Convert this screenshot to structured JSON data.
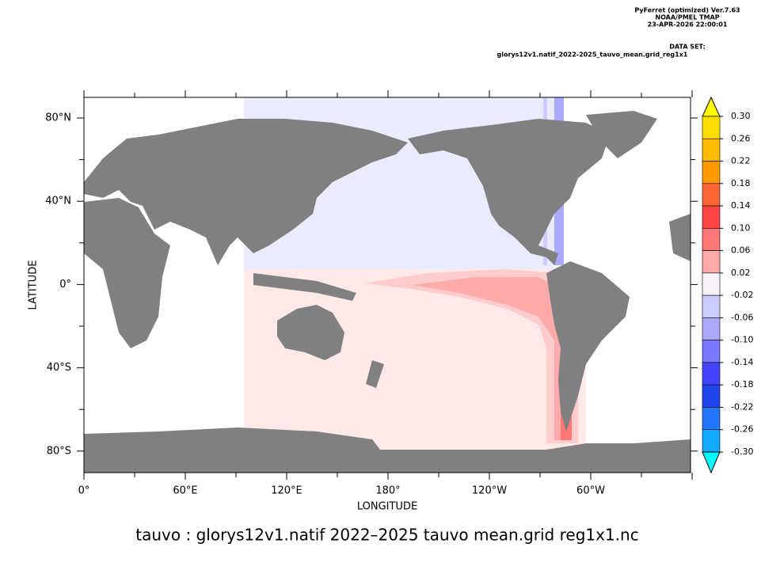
{
  "header": {
    "lines": [
      "PyFerret (optimized) Ver.7.63",
      "NOAA/PMEL TMAP",
      "23-APR-2026 22:00:01"
    ],
    "dataset_label": "DATA SET:",
    "dataset": "glorys12v1.natif_2022-2025_tauvo_mean.grid_reg1x1"
  },
  "map": {
    "x_axis_label": "LONGITUDE",
    "y_axis_label": "LATITUDE",
    "x_ticks": [
      "0°",
      "60°E",
      "120°E",
      "180°",
      "120°W",
      "60°W"
    ],
    "y_ticks": [
      "80°N",
      "40°N",
      "0°",
      "40°S",
      "80°S"
    ]
  },
  "colorbar": {
    "labels": [
      "0.30",
      "0.26",
      "0.22",
      "0.18",
      "0.14",
      "0.10",
      "0.06",
      "0.02",
      "-0.02",
      "-0.06",
      "-0.10",
      "-0.14",
      "-0.18",
      "-0.22",
      "-0.26",
      "-0.30"
    ],
    "colors": [
      "#ffff00",
      "#ffdd00",
      "#ffbb00",
      "#ff9900",
      "#ff6633",
      "#ff4444",
      "#ff7777",
      "#ffaaaa",
      "#f6f2f8",
      "#ccccff",
      "#aaaaff",
      "#7777ff",
      "#4444ff",
      "#2244ee",
      "#2277ff",
      "#11aaff",
      "#00ddff",
      "#00ffff"
    ]
  },
  "title": "tauvo : glorys12v1.natif 2022–2025 tauvo mean.grid reg1x1.nc"
}
